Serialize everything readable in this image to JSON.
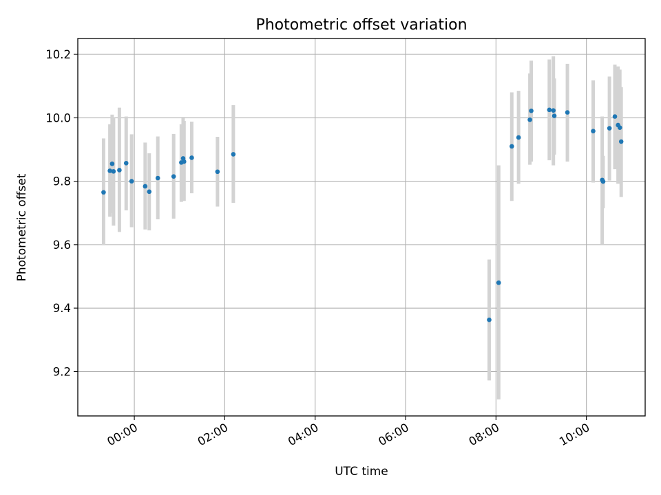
{
  "chart_data": {
    "type": "scatter",
    "title": "Photometric offset variation",
    "xlabel": "UTC time",
    "ylabel": "Photometric offset",
    "x_unit": "hours",
    "xlim": [
      -1.25,
      11.3
    ],
    "ylim": [
      9.06,
      10.25
    ],
    "grid": true,
    "xticks": [
      {
        "value": 0,
        "label": "00:00"
      },
      {
        "value": 2,
        "label": "02:00"
      },
      {
        "value": 4,
        "label": "04:00"
      },
      {
        "value": 6,
        "label": "06:00"
      },
      {
        "value": 8,
        "label": "08:00"
      },
      {
        "value": 10,
        "label": "10:00"
      }
    ],
    "yticks": [
      {
        "value": 9.2,
        "label": "9.2"
      },
      {
        "value": 9.4,
        "label": "9.4"
      },
      {
        "value": 9.6,
        "label": "9.6"
      },
      {
        "value": 9.8,
        "label": "9.8"
      },
      {
        "value": 10.0,
        "label": "10.0"
      },
      {
        "value": 10.2,
        "label": "10.2"
      }
    ],
    "series": [
      {
        "name": "offset",
        "marker_color": "#1f77b4",
        "errorbar_color": "#d3d3d3",
        "points": [
          {
            "x": -0.68,
            "y": 9.765,
            "lo": 9.598,
            "hi": 9.935
          },
          {
            "x": -0.54,
            "y": 9.833,
            "lo": 9.688,
            "hi": 9.98
          },
          {
            "x": -0.49,
            "y": 9.855,
            "lo": 9.7,
            "hi": 10.01
          },
          {
            "x": -0.46,
            "y": 9.831,
            "lo": 9.66,
            "hi": 10.002
          },
          {
            "x": -0.33,
            "y": 9.835,
            "lo": 9.64,
            "hi": 10.032
          },
          {
            "x": -0.18,
            "y": 9.857,
            "lo": 9.708,
            "hi": 10.004
          },
          {
            "x": -0.06,
            "y": 9.8,
            "lo": 9.655,
            "hi": 9.948
          },
          {
            "x": 0.24,
            "y": 9.784,
            "lo": 9.648,
            "hi": 9.922
          },
          {
            "x": 0.33,
            "y": 9.767,
            "lo": 9.645,
            "hi": 9.888
          },
          {
            "x": 0.52,
            "y": 9.81,
            "lo": 9.68,
            "hi": 9.941
          },
          {
            "x": 0.87,
            "y": 9.815,
            "lo": 9.682,
            "hi": 9.949
          },
          {
            "x": 1.04,
            "y": 9.859,
            "lo": 9.735,
            "hi": 9.98
          },
          {
            "x": 1.08,
            "y": 9.872,
            "lo": 9.74,
            "hi": 10.003
          },
          {
            "x": 1.1,
            "y": 9.862,
            "lo": 9.738,
            "hi": 9.99
          },
          {
            "x": 1.27,
            "y": 9.874,
            "lo": 9.762,
            "hi": 9.988
          },
          {
            "x": 1.84,
            "y": 9.83,
            "lo": 9.72,
            "hi": 9.94
          },
          {
            "x": 2.19,
            "y": 9.885,
            "lo": 9.732,
            "hi": 10.04
          },
          {
            "x": 7.85,
            "y": 9.363,
            "lo": 9.172,
            "hi": 9.553
          },
          {
            "x": 8.06,
            "y": 9.48,
            "lo": 9.112,
            "hi": 9.85
          },
          {
            "x": 8.35,
            "y": 9.91,
            "lo": 9.738,
            "hi": 10.08
          },
          {
            "x": 8.5,
            "y": 9.938,
            "lo": 9.792,
            "hi": 10.085
          },
          {
            "x": 8.75,
            "y": 9.994,
            "lo": 9.852,
            "hi": 10.14
          },
          {
            "x": 8.78,
            "y": 10.022,
            "lo": 9.862,
            "hi": 10.18
          },
          {
            "x": 9.18,
            "y": 10.025,
            "lo": 9.866,
            "hi": 10.184
          },
          {
            "x": 9.27,
            "y": 10.023,
            "lo": 9.85,
            "hi": 10.194
          },
          {
            "x": 9.29,
            "y": 10.006,
            "lo": 9.884,
            "hi": 10.124
          },
          {
            "x": 9.58,
            "y": 10.017,
            "lo": 9.862,
            "hi": 10.17
          },
          {
            "x": 10.15,
            "y": 9.958,
            "lo": 9.796,
            "hi": 10.118
          },
          {
            "x": 10.35,
            "y": 9.804,
            "lo": 9.602,
            "hi": 10.004
          },
          {
            "x": 10.37,
            "y": 9.799,
            "lo": 9.715,
            "hi": 9.88
          },
          {
            "x": 10.51,
            "y": 9.967,
            "lo": 9.802,
            "hi": 10.13
          },
          {
            "x": 10.63,
            "y": 10.004,
            "lo": 9.838,
            "hi": 10.168
          },
          {
            "x": 10.7,
            "y": 9.977,
            "lo": 9.792,
            "hi": 10.162
          },
          {
            "x": 10.74,
            "y": 9.969,
            "lo": 9.805,
            "hi": 10.152
          },
          {
            "x": 10.77,
            "y": 9.925,
            "lo": 9.75,
            "hi": 10.097
          }
        ]
      }
    ]
  }
}
